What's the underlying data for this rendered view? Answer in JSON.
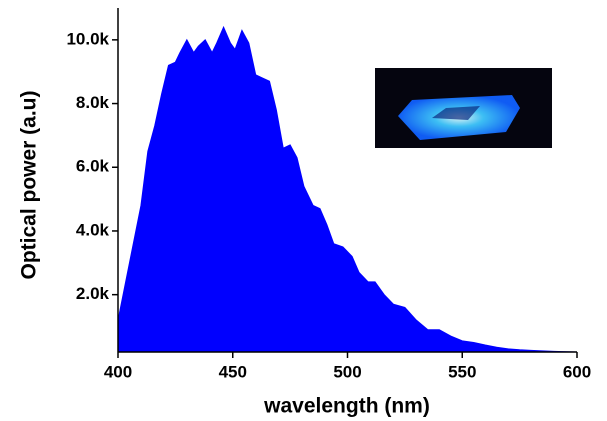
{
  "chart_data": {
    "type": "area",
    "x_label": "wavelength (nm)",
    "y_label": "Optical power (a.u)",
    "color": "#0000ff",
    "x": [
      400,
      405,
      410,
      413,
      416,
      419,
      422,
      425,
      427,
      430,
      433,
      435,
      438,
      441,
      443,
      446,
      449,
      451,
      454,
      457,
      460,
      463,
      466,
      469,
      472,
      475,
      478,
      481,
      485,
      488,
      491,
      494,
      498,
      502,
      505,
      509,
      512,
      516,
      520,
      525,
      530,
      535,
      540,
      545,
      550,
      555,
      560,
      565,
      570,
      575,
      580,
      590,
      600
    ],
    "values": [
      1200,
      3000,
      4800,
      6500,
      7300,
      8300,
      9200,
      9300,
      9600,
      10000,
      9600,
      9800,
      10000,
      9600,
      9900,
      10400,
      9900,
      9700,
      10300,
      9900,
      8900,
      8800,
      8700,
      7800,
      6600,
      6700,
      6300,
      5400,
      4800,
      4700,
      4200,
      3600,
      3500,
      3200,
      2700,
      2400,
      2400,
      2000,
      1700,
      1600,
      1200,
      900,
      900,
      700,
      550,
      500,
      420,
      350,
      300,
      270,
      250,
      220,
      200
    ],
    "xlim": [
      400,
      600
    ],
    "ylim": [
      200,
      11000
    ],
    "xticks": [
      400,
      450,
      500,
      550,
      600
    ],
    "yticks": [
      {
        "value": 2000,
        "label": "2.0k"
      },
      {
        "value": 4000,
        "label": "4.0k"
      },
      {
        "value": 6000,
        "label": "6.0k"
      },
      {
        "value": 8000,
        "label": "8.0k"
      },
      {
        "value": 10000,
        "label": "10.0k"
      }
    ]
  }
}
